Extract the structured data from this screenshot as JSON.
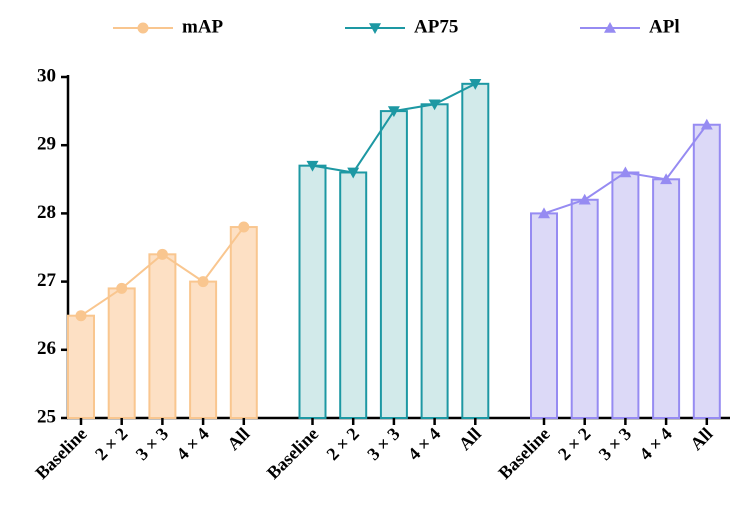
{
  "chart_data": {
    "type": "bar-line",
    "categories": [
      "Baseline",
      "2 × 2",
      "3 × 3",
      "4 × 4",
      "All"
    ],
    "series": [
      {
        "name": "mAP",
        "color": "#f9c68f",
        "fill": "#fde0c4",
        "marker": "circle",
        "values": [
          26.5,
          26.9,
          27.4,
          27.0,
          27.8
        ]
      },
      {
        "name": "AP75",
        "color": "#1d98a3",
        "fill": "#d2eaea",
        "marker": "triangle-down",
        "values": [
          28.7,
          28.6,
          29.5,
          29.6,
          29.9
        ]
      },
      {
        "name": "APl",
        "color": "#968bf2",
        "fill": "#dcd9f7",
        "marker": "triangle-up",
        "values": [
          28.0,
          28.2,
          28.6,
          28.5,
          29.3
        ]
      }
    ],
    "ylim": [
      25,
      30
    ],
    "yticks": [
      25,
      26,
      27,
      28,
      29,
      30
    ],
    "grid": false,
    "legend": "top"
  }
}
